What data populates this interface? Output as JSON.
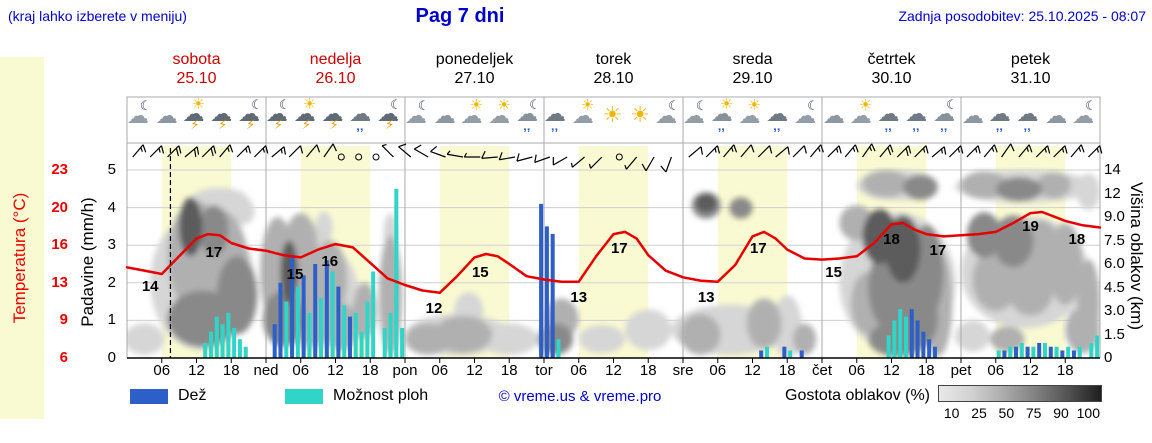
{
  "header": {
    "hint": "(kraj lahko izberete v meniju)",
    "title": "Pag 7 dni",
    "updated": "Zadnja posodobitev: 25.10.2025 - 08:07"
  },
  "days": [
    {
      "name": "sobota",
      "date": "25.10",
      "highlight": true,
      "icons": [
        "moon-cloud",
        "cloud",
        "sun-storm",
        "storm",
        "moon-storm"
      ]
    },
    {
      "name": "nedelja",
      "date": "26.10",
      "highlight": true,
      "icons": [
        "moon-storm",
        "sun-storm",
        "storm",
        "rain",
        "moon-storm"
      ]
    },
    {
      "name": "ponedeljek",
      "date": "27.10",
      "highlight": false,
      "icons": [
        "moon-cloud",
        "cloud",
        "sun-cloud",
        "sun-cloud",
        "moon-rain"
      ]
    },
    {
      "name": "torek",
      "date": "28.10",
      "highlight": false,
      "icons": [
        "rain",
        "sun-cloud",
        "sun",
        "sun",
        "moon-cloud"
      ]
    },
    {
      "name": "sreda",
      "date": "29.10",
      "highlight": false,
      "icons": [
        "moon-cloud",
        "sun-rain",
        "sun-cloud",
        "rain",
        "moon-cloud"
      ]
    },
    {
      "name": "četrtek",
      "date": "30.10",
      "highlight": false,
      "icons": [
        "cloud",
        "sun-cloud",
        "rain",
        "rain",
        "moon-rain"
      ]
    },
    {
      "name": "petek",
      "date": "31.10",
      "highlight": false,
      "icons": [
        "cloud",
        "rain",
        "rain",
        "cloud",
        "moon-cloud"
      ]
    }
  ],
  "axes": {
    "temperature": {
      "label": "Temperatura (°C)",
      "ticks": [
        "23",
        "20",
        "16",
        "13",
        "9",
        "6"
      ]
    },
    "precip": {
      "label": "Padavine (mm/h)",
      "ticks": [
        "5",
        "4",
        "3",
        "2",
        "1",
        "0"
      ]
    },
    "cloud_height": {
      "label": "Višina oblakov (km)",
      "ticks": [
        "14",
        "12",
        "9.0",
        "7.5",
        "6.0",
        "4.5",
        "3.0",
        "1.5",
        "0"
      ]
    }
  },
  "x_ticks": [
    [
      6,
      "06"
    ],
    [
      12,
      "12"
    ],
    [
      18,
      "18"
    ],
    [
      24,
      "ned"
    ],
    [
      30,
      "06"
    ],
    [
      36,
      "12"
    ],
    [
      42,
      "18"
    ],
    [
      48,
      "pon"
    ],
    [
      54,
      "06"
    ],
    [
      60,
      "12"
    ],
    [
      66,
      "18"
    ],
    [
      72,
      "tor"
    ],
    [
      78,
      "06"
    ],
    [
      84,
      "12"
    ],
    [
      90,
      "18"
    ],
    [
      96,
      "sre"
    ],
    [
      102,
      "06"
    ],
    [
      108,
      "12"
    ],
    [
      114,
      "18"
    ],
    [
      120,
      "čet"
    ],
    [
      126,
      "06"
    ],
    [
      132,
      "12"
    ],
    [
      138,
      "18"
    ],
    [
      144,
      "pet"
    ],
    [
      150,
      "06"
    ],
    [
      156,
      "12"
    ],
    [
      162,
      "18"
    ]
  ],
  "legend": {
    "rain": "Dež",
    "showers": "Možnost ploh",
    "credit": "© vreme.us & vreme.pro",
    "cloud": "Gostota oblakov (%)",
    "cloud_scale": [
      "10",
      "25",
      "50",
      "75",
      "90",
      "100"
    ]
  },
  "colors": {
    "blue_text": "#0000cc",
    "day_red": "#cc0000",
    "temp_axis": "#ee0000",
    "temp_line": "#e60000",
    "rain": "#2d5fc9",
    "showers": "#30d5c8",
    "day_band": "#fafad2",
    "cloud_shades": {
      "25": "#d6d6d6",
      "50": "#b0b0b0",
      "75": "#898989",
      "90": "#5c5c5c"
    },
    "scale_gradient": [
      "#e8e8e8",
      "#d2d2d2",
      "#ababab",
      "#808080",
      "#525252",
      "#1e1e1e"
    ]
  },
  "chart_data": {
    "type": "meteogram",
    "x_unit": "hours from sobota 25.10 00:00, 7 days (168 h)",
    "y_axes": {
      "precip_mm_h": [
        0,
        5
      ],
      "temperature_c": [
        6,
        23
      ],
      "cloud_height_km": [
        0,
        14
      ]
    },
    "now_h": 7.5,
    "temperature": {
      "series": [
        [
          0,
          14.2
        ],
        [
          3,
          13.9
        ],
        [
          6,
          13.6
        ],
        [
          9,
          15.2
        ],
        [
          12,
          16.8
        ],
        [
          14,
          17.2
        ],
        [
          16,
          17.1
        ],
        [
          18,
          16.4
        ],
        [
          21,
          15.9
        ],
        [
          24,
          15.7
        ],
        [
          27,
          15.3
        ],
        [
          30,
          15.1
        ],
        [
          33,
          15.8
        ],
        [
          36,
          16.3
        ],
        [
          39,
          16.0
        ],
        [
          42,
          14.6
        ],
        [
          45,
          13.2
        ],
        [
          48,
          12.6
        ],
        [
          51,
          12.1
        ],
        [
          54,
          11.9
        ],
        [
          57,
          13.4
        ],
        [
          60,
          15.1
        ],
        [
          62,
          15.4
        ],
        [
          64,
          15.2
        ],
        [
          66,
          14.5
        ],
        [
          69,
          13.4
        ],
        [
          72,
          13.1
        ],
        [
          75,
          12.9
        ],
        [
          78,
          12.9
        ],
        [
          81,
          15.2
        ],
        [
          84,
          17.2
        ],
        [
          86,
          17.4
        ],
        [
          88,
          16.8
        ],
        [
          90,
          15.3
        ],
        [
          93,
          13.9
        ],
        [
          96,
          13.3
        ],
        [
          99,
          13.0
        ],
        [
          102,
          12.9
        ],
        [
          105,
          14.4
        ],
        [
          108,
          17.0
        ],
        [
          110,
          17.4
        ],
        [
          112,
          16.8
        ],
        [
          114,
          15.8
        ],
        [
          117,
          15.0
        ],
        [
          120,
          14.9
        ],
        [
          123,
          15.0
        ],
        [
          126,
          15.2
        ],
        [
          129,
          16.4
        ],
        [
          132,
          18.1
        ],
        [
          134,
          18.2
        ],
        [
          136,
          17.6
        ],
        [
          138,
          17.2
        ],
        [
          141,
          17.0
        ],
        [
          144,
          17.1
        ],
        [
          147,
          17.2
        ],
        [
          150,
          17.4
        ],
        [
          153,
          18.2
        ],
        [
          156,
          19.1
        ],
        [
          158,
          19.2
        ],
        [
          160,
          18.8
        ],
        [
          162,
          18.4
        ],
        [
          165,
          18.0
        ],
        [
          168,
          17.8
        ]
      ],
      "labels": [
        [
          4,
          14,
          8
        ],
        [
          15,
          17,
          8
        ],
        [
          29,
          15,
          8
        ],
        [
          35,
          16,
          6
        ],
        [
          53,
          12,
          8
        ],
        [
          61,
          15,
          6
        ],
        [
          78,
          13,
          8
        ],
        [
          85,
          17,
          4
        ],
        [
          100,
          13,
          8
        ],
        [
          109,
          17,
          4
        ],
        [
          122,
          15,
          6
        ],
        [
          132,
          18,
          6
        ],
        [
          140,
          17,
          6
        ],
        [
          156,
          19,
          4
        ],
        [
          164,
          18,
          6
        ]
      ]
    },
    "rain_mm_h": [
      [
        25,
        0.9
      ],
      [
        26,
        2.0
      ],
      [
        28,
        2.7
      ],
      [
        30,
        2.2
      ],
      [
        32,
        2.5
      ],
      [
        34,
        2.6
      ],
      [
        36,
        1.9
      ],
      [
        38,
        1.1
      ],
      [
        71,
        4.1
      ],
      [
        72,
        3.5
      ],
      [
        73,
        3.3
      ],
      [
        109,
        0.2
      ],
      [
        113,
        0.3
      ],
      [
        116,
        0.2
      ],
      [
        135,
        1.3
      ],
      [
        136,
        1.0
      ],
      [
        137,
        0.7
      ],
      [
        138,
        0.5
      ],
      [
        139,
        0.3
      ],
      [
        151,
        0.2
      ],
      [
        153,
        0.3
      ],
      [
        155,
        0.3
      ],
      [
        157,
        0.4
      ],
      [
        159,
        0.3
      ],
      [
        161,
        0.2
      ],
      [
        163,
        0.2
      ]
    ],
    "showers_mm_h": [
      [
        13,
        0.4
      ],
      [
        14,
        0.7
      ],
      [
        15,
        1.1
      ],
      [
        16,
        0.9
      ],
      [
        17,
        1.2
      ],
      [
        18,
        0.8
      ],
      [
        19,
        0.5
      ],
      [
        20,
        0.3
      ],
      [
        27,
        1.5
      ],
      [
        29,
        1.9
      ],
      [
        31,
        1.2
      ],
      [
        33,
        1.6
      ],
      [
        35,
        2.3
      ],
      [
        37,
        1.4
      ],
      [
        39,
        1.2
      ],
      [
        40,
        0.7
      ],
      [
        41,
        1.5
      ],
      [
        42,
        2.3
      ],
      [
        44,
        0.8
      ],
      [
        45,
        1.2
      ],
      [
        46,
        4.5
      ],
      [
        47,
        0.8
      ],
      [
        74,
        0.5
      ],
      [
        110,
        0.3
      ],
      [
        114,
        0.2
      ],
      [
        131,
        0.6
      ],
      [
        132,
        1.0
      ],
      [
        133,
        1.3
      ],
      [
        134,
        1.1
      ],
      [
        150,
        0.2
      ],
      [
        152,
        0.3
      ],
      [
        154,
        0.4
      ],
      [
        156,
        0.3
      ],
      [
        158,
        0.4
      ],
      [
        160,
        0.3
      ],
      [
        162,
        0.3
      ],
      [
        164,
        0.3
      ],
      [
        166,
        0.4
      ],
      [
        167,
        0.6
      ]
    ],
    "clouds": [
      [
        3,
        1.2,
        3.5,
        1.0,
        25
      ],
      [
        13,
        5,
        9,
        4.5,
        25
      ],
      [
        16,
        11,
        5,
        1.5,
        25
      ],
      [
        20,
        10,
        2,
        1.5,
        25
      ],
      [
        12,
        7,
        5,
        4,
        50
      ],
      [
        16,
        6,
        5,
        4,
        50
      ],
      [
        13,
        2.5,
        6,
        1.8,
        75
      ],
      [
        19,
        4,
        3.5,
        2.5,
        75
      ],
      [
        15,
        8.5,
        2.5,
        2,
        75
      ],
      [
        11,
        9,
        2,
        2.5,
        90
      ],
      [
        32,
        4,
        8,
        3.5,
        25
      ],
      [
        34,
        8.5,
        1.5,
        1.2,
        25
      ],
      [
        45.5,
        8,
        1.2,
        1.5,
        25
      ],
      [
        26,
        5.5,
        3,
        3.5,
        50
      ],
      [
        30,
        7,
        3,
        2.5,
        50
      ],
      [
        32,
        3,
        4,
        2.2,
        50
      ],
      [
        35,
        5,
        3,
        2.5,
        50
      ],
      [
        37,
        2,
        3,
        1.5,
        50
      ],
      [
        41,
        3,
        2,
        1.8,
        50
      ],
      [
        45.5,
        4,
        2,
        3.8,
        50
      ],
      [
        27,
        2.5,
        3.5,
        1.8,
        75
      ],
      [
        28,
        5.5,
        1.5,
        2,
        90
      ],
      [
        57,
        1.5,
        9,
        1.3,
        25
      ],
      [
        59,
        3,
        2.5,
        1.2,
        25
      ],
      [
        66,
        1.2,
        5,
        1.0,
        25
      ],
      [
        52,
        1.2,
        4,
        1.0,
        50
      ],
      [
        58,
        1.5,
        5,
        1.2,
        50
      ],
      [
        75,
        2.5,
        3,
        1.3,
        50
      ],
      [
        74,
        1.2,
        3,
        1.0,
        75
      ],
      [
        82,
        1.2,
        4,
        0.9,
        25
      ],
      [
        90,
        1.8,
        4,
        1.3,
        25
      ],
      [
        104,
        1.8,
        10,
        1.6,
        25
      ],
      [
        114,
        2,
        2.5,
        2,
        25
      ],
      [
        99,
        1.5,
        3.5,
        1.3,
        50
      ],
      [
        110,
        2.2,
        3,
        1.6,
        50
      ],
      [
        117,
        1.2,
        2,
        1.0,
        50
      ],
      [
        100,
        10.5,
        2.5,
        1.6,
        75
      ],
      [
        106,
        10.2,
        2,
        1.3,
        75
      ],
      [
        100,
        10.8,
        1.8,
        1.2,
        90
      ],
      [
        133,
        12.6,
        7,
        1.5,
        25
      ],
      [
        133,
        5,
        10,
        4.6,
        25
      ],
      [
        131,
        12.8,
        4,
        1.3,
        50
      ],
      [
        126,
        9,
        3,
        1.5,
        50
      ],
      [
        128,
        3.5,
        3,
        2,
        50
      ],
      [
        140,
        3.5,
        2.5,
        3.4,
        50
      ],
      [
        137,
        12.4,
        3,
        1.2,
        75
      ],
      [
        132,
        4.5,
        4,
        2.8,
        75
      ],
      [
        136,
        2.5,
        4,
        2,
        75
      ],
      [
        138,
        5.5,
        3,
        3,
        75
      ],
      [
        133,
        1.2,
        5,
        1.1,
        75
      ],
      [
        130,
        8,
        3,
        2,
        90
      ],
      [
        134,
        7,
        3,
        2.2,
        90
      ],
      [
        155,
        12.4,
        12,
        1.6,
        25
      ],
      [
        155,
        5.5,
        11,
        3.6,
        25
      ],
      [
        146,
        1.4,
        3,
        1.0,
        25
      ],
      [
        166,
        11.8,
        2,
        1.9,
        25
      ],
      [
        148,
        12.6,
        4,
        1.3,
        50
      ],
      [
        160,
        12.6,
        3,
        1.2,
        50
      ],
      [
        158,
        7,
        3,
        1.8,
        50
      ],
      [
        150,
        5,
        4,
        2,
        50
      ],
      [
        156,
        4.5,
        4,
        1.8,
        50
      ],
      [
        162,
        6,
        3,
        2.6,
        50
      ],
      [
        166,
        3.5,
        2,
        2.8,
        50
      ],
      [
        165,
        1.8,
        3,
        1.5,
        50
      ],
      [
        152,
        1.2,
        3,
        0.8,
        50
      ],
      [
        154,
        12.2,
        4,
        1.2,
        75
      ],
      [
        148,
        8,
        3,
        1.6,
        75
      ],
      [
        153,
        7.5,
        3.5,
        1.7,
        75
      ]
    ],
    "wind": [
      [
        1,
        40,
        15
      ],
      [
        4,
        45,
        15
      ],
      [
        7,
        45,
        20
      ],
      [
        10,
        50,
        20
      ],
      [
        13,
        45,
        20
      ],
      [
        16,
        40,
        15
      ],
      [
        19,
        45,
        15
      ],
      [
        22,
        45,
        15
      ],
      [
        25,
        50,
        15
      ],
      [
        28,
        45,
        10
      ],
      [
        31,
        40,
        10
      ],
      [
        34,
        35,
        10
      ],
      [
        37,
        0,
        0
      ],
      [
        40,
        0,
        0
      ],
      [
        43,
        0,
        0
      ],
      [
        46,
        315,
        5
      ],
      [
        49,
        310,
        10
      ],
      [
        52,
        300,
        10
      ],
      [
        55,
        290,
        10
      ],
      [
        58,
        280,
        5
      ],
      [
        61,
        270,
        5
      ],
      [
        64,
        265,
        10
      ],
      [
        67,
        260,
        10
      ],
      [
        70,
        255,
        10
      ],
      [
        73,
        250,
        10
      ],
      [
        76,
        240,
        10
      ],
      [
        79,
        230,
        5
      ],
      [
        82,
        225,
        5
      ],
      [
        85,
        0,
        0
      ],
      [
        88,
        220,
        5
      ],
      [
        91,
        210,
        10
      ],
      [
        94,
        200,
        10
      ],
      [
        97,
        50,
        10
      ],
      [
        100,
        45,
        15
      ],
      [
        103,
        40,
        15
      ],
      [
        106,
        40,
        10
      ],
      [
        109,
        45,
        10
      ],
      [
        112,
        50,
        10
      ],
      [
        115,
        45,
        10
      ],
      [
        118,
        40,
        15
      ],
      [
        121,
        45,
        15
      ],
      [
        124,
        40,
        15
      ],
      [
        127,
        35,
        15
      ],
      [
        130,
        40,
        20
      ],
      [
        133,
        45,
        20
      ],
      [
        136,
        45,
        15
      ],
      [
        139,
        50,
        15
      ],
      [
        142,
        45,
        15
      ],
      [
        145,
        45,
        15
      ],
      [
        148,
        40,
        15
      ],
      [
        151,
        35,
        10
      ],
      [
        154,
        40,
        15
      ],
      [
        157,
        45,
        15
      ],
      [
        160,
        45,
        15
      ],
      [
        163,
        40,
        15
      ],
      [
        166,
        45,
        15
      ]
    ]
  }
}
